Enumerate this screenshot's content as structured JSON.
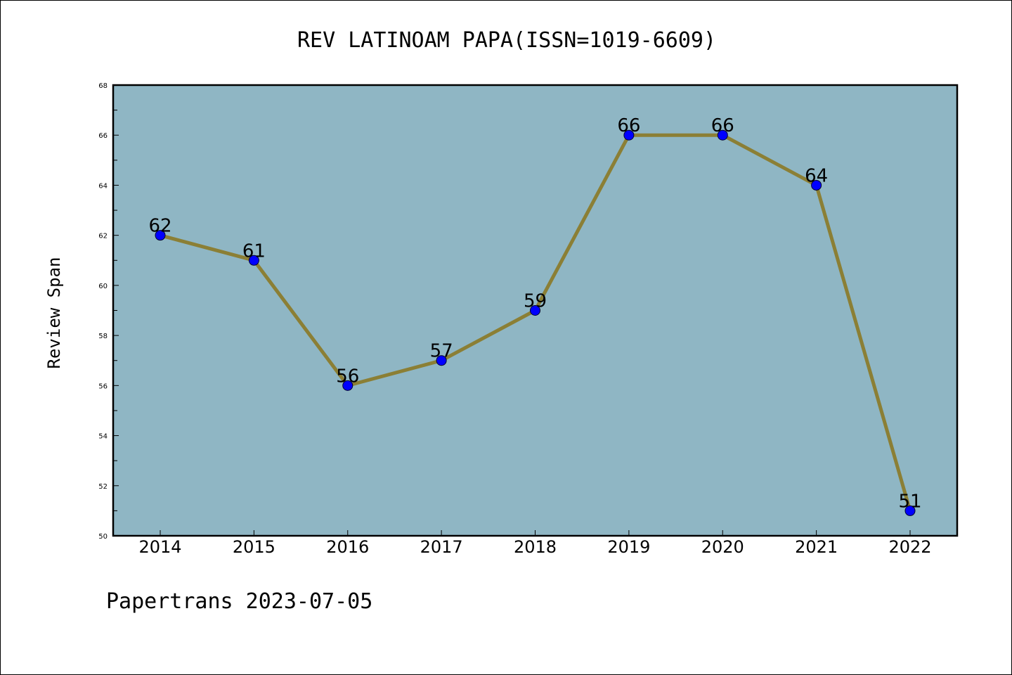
{
  "chart_data": {
    "type": "line",
    "title": "REV LATINOAM PAPA(ISSN=1019-6609)",
    "xlabel": "",
    "ylabel": "Review Span",
    "categories": [
      "2014",
      "2015",
      "2016",
      "2017",
      "2018",
      "2019",
      "2020",
      "2021",
      "2022"
    ],
    "series": [
      {
        "values": [
          62,
          61,
          56,
          57,
          59,
          66,
          66,
          64,
          51
        ]
      }
    ],
    "data_labels": [
      "62",
      "61",
      "56",
      "57",
      "59",
      "66",
      "66",
      "64",
      "51"
    ],
    "ylim": [
      50,
      68
    ],
    "yticks": [
      "50",
      "52",
      "54",
      "56",
      "58",
      "60",
      "62",
      "64",
      "66",
      "68"
    ],
    "grid": false,
    "legend": "none",
    "colors": {
      "plot_background": "#8fb6c4",
      "line": "#8b7f35",
      "marker": "#0000ff"
    }
  },
  "footer": "Papertrans 2023-07-05"
}
